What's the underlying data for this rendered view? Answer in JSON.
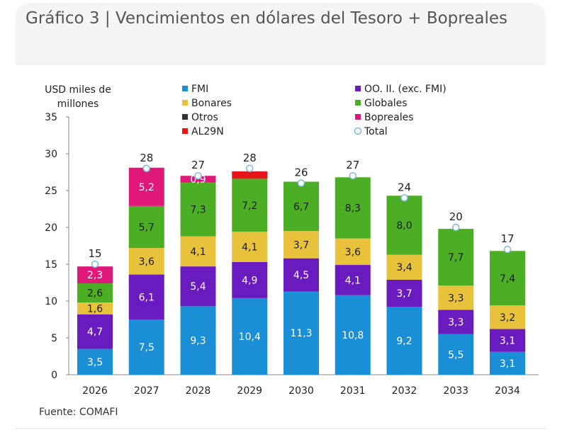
{
  "header": {
    "title": "Gráfico 3 | Vencimientos en dólares del Tesoro + Bopreales"
  },
  "footer": {
    "source": "Fuente: COMAFI"
  },
  "chart_data": {
    "type": "bar",
    "stacked": true,
    "title": "Gráfico 3 | Vencimientos en dólares del Tesoro + Bopreales",
    "ylabel_lines": [
      "USD miles de",
      "millones"
    ],
    "ylim": [
      0,
      35
    ],
    "yticks": [
      0,
      5,
      10,
      15,
      20,
      25,
      30,
      35
    ],
    "categories": [
      "2026",
      "2027",
      "2028",
      "2029",
      "2030",
      "2031",
      "2032",
      "2033",
      "2034"
    ],
    "series": [
      {
        "name": "FMI",
        "color": "#1b8fd6",
        "values": [
          3.5,
          7.5,
          9.3,
          10.4,
          11.3,
          10.8,
          9.2,
          5.5,
          3.1
        ],
        "labels": [
          "3,5",
          "7,5",
          "9,3",
          "10,4",
          "11,3",
          "10,8",
          "9,2",
          "5,5",
          "3,1"
        ]
      },
      {
        "name": "OO. II. (exc. FMI)",
        "color": "#6a1bbf",
        "values": [
          4.7,
          6.1,
          5.4,
          4.9,
          4.5,
          4.1,
          3.7,
          3.3,
          3.1
        ],
        "labels": [
          "4,7",
          "6,1",
          "5,4",
          "4,9",
          "4,5",
          "4,1",
          "3,7",
          "3,3",
          "3,1"
        ]
      },
      {
        "name": "Bonares",
        "color": "#e8c23a",
        "values": [
          1.6,
          3.6,
          4.1,
          4.1,
          3.7,
          3.6,
          3.4,
          3.3,
          3.2
        ],
        "labels": [
          "1,6",
          "3,6",
          "4,1",
          "4,1",
          "3,7",
          "3,6",
          "3,4",
          "3,3",
          "3,2"
        ]
      },
      {
        "name": "Globales",
        "color": "#4cae24",
        "values": [
          2.6,
          5.7,
          7.3,
          7.2,
          6.7,
          8.3,
          8.0,
          7.7,
          7.4
        ],
        "labels": [
          "2,6",
          "5,7",
          "7,3",
          "7,2",
          "6,7",
          "8,3",
          "8,0",
          "7,7",
          "7,4"
        ]
      },
      {
        "name": "Otros",
        "color": "#333333",
        "values": [
          0,
          0,
          0,
          0,
          0,
          0,
          0,
          0,
          0
        ],
        "labels": [
          "",
          "",
          "",
          "",
          "",
          "",
          "",
          "",
          ""
        ]
      },
      {
        "name": "Bopreales",
        "color": "#e0187a",
        "values": [
          2.3,
          5.2,
          0.9,
          0,
          0,
          0,
          0,
          0,
          0
        ],
        "labels": [
          "2,3",
          "5,2",
          "0,9",
          "",
          "",
          "",
          "",
          "",
          ""
        ]
      },
      {
        "name": "AL29N",
        "color": "#e8141b",
        "values": [
          0,
          0,
          0,
          1.0,
          0,
          0,
          0,
          0,
          0
        ],
        "labels": [
          "",
          "",
          "",
          "",
          "",
          "",
          "",
          "",
          ""
        ]
      }
    ],
    "total": {
      "name": "Total",
      "values": [
        15,
        28,
        27,
        28,
        26,
        27,
        24,
        20,
        17
      ],
      "labels": [
        "15",
        "28",
        "27",
        "28",
        "26",
        "27",
        "24",
        "20",
        "17"
      ]
    },
    "legend": [
      {
        "name": "FMI",
        "color": "#1b8fd6",
        "marker": "square"
      },
      {
        "name": "OO. II. (exc. FMI)",
        "color": "#6a1bbf",
        "marker": "square"
      },
      {
        "name": "Bonares",
        "color": "#e8c23a",
        "marker": "square"
      },
      {
        "name": "Globales",
        "color": "#4cae24",
        "marker": "square"
      },
      {
        "name": "Otros",
        "color": "#333333",
        "marker": "square"
      },
      {
        "name": "Bopreales",
        "color": "#e0187a",
        "marker": "square"
      },
      {
        "name": "AL29N",
        "color": "#e8141b",
        "marker": "square"
      },
      {
        "name": "Total",
        "color": "#7ab8e0",
        "marker": "circle"
      }
    ]
  }
}
